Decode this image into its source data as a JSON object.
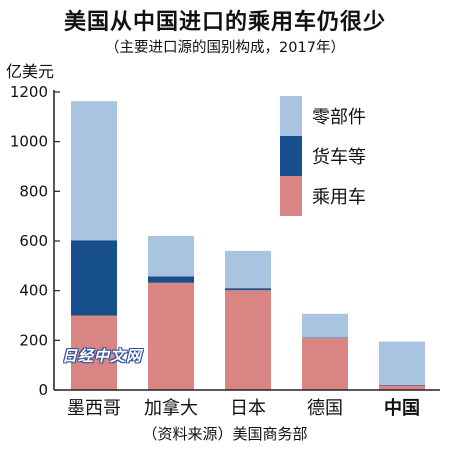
{
  "header": {
    "title": "美国从中国进口的乘用车仍很少",
    "subtitle": "（主要进口源的国别构成，2017年）",
    "unit": "亿美元"
  },
  "footer": {
    "source": "（资料来源）美国商务部",
    "watermark": "日经中文网"
  },
  "colors": {
    "parts": "#a9c4e0",
    "trucks": "#174f8c",
    "cars": "#d98583",
    "axis": "#222222"
  },
  "chart_data": {
    "type": "bar",
    "stacked": true,
    "categories": [
      "墨西哥",
      "加拿大",
      "日本",
      "德国",
      "中国"
    ],
    "highlight_category": "中国",
    "series": [
      {
        "name": "乘用车",
        "color": "#d98583",
        "values": [
          300,
          432,
          402,
          210,
          18
        ]
      },
      {
        "name": "货车等",
        "color": "#174f8c",
        "values": [
          303,
          25,
          8,
          2,
          2
        ]
      },
      {
        "name": "零部件",
        "color": "#a9c4e0",
        "values": [
          560,
          163,
          150,
          95,
          175
        ]
      }
    ],
    "legend_order": [
      "零部件",
      "货车等",
      "乘用车"
    ],
    "ylabel": "亿美元",
    "ylim": [
      0,
      1200
    ],
    "yticks": [
      0,
      200,
      400,
      600,
      800,
      1000,
      1200
    ],
    "grid": false,
    "legend_position": "top-right"
  }
}
